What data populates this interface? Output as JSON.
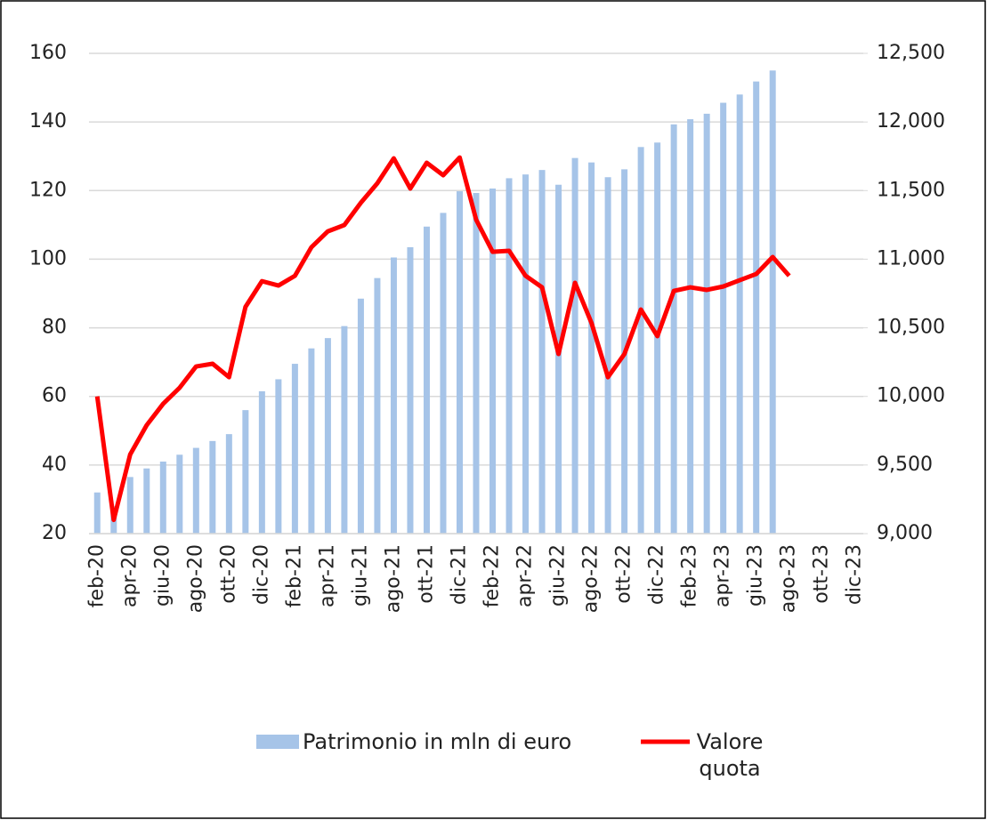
{
  "chart_data": {
    "type": "combo",
    "categories": [
      "feb-20",
      null,
      "apr-20",
      null,
      "giu-20",
      null,
      "ago-20",
      null,
      "ott-20",
      null,
      "dic-20",
      null,
      "feb-21",
      null,
      "apr-21",
      null,
      "giu-21",
      null,
      "ago-21",
      null,
      "ott-21",
      null,
      "dic-21",
      null,
      "feb-22",
      null,
      "apr-22",
      null,
      "giu-22",
      null,
      "ago-22",
      null,
      "ott-22",
      null,
      "dic-22",
      null,
      "feb-23",
      null,
      "apr-23",
      null,
      "giu-23",
      null,
      "ago-23",
      null,
      "ott-23",
      null,
      "dic-23"
    ],
    "series": [
      {
        "name": "Patrimonio in mln di euro",
        "color": "#a6c4e8",
        "mark": "bar",
        "values": [
          32,
          28,
          36.5,
          39,
          41,
          43,
          45,
          47,
          49,
          56,
          61.5,
          65,
          69.5,
          74,
          77,
          80.5,
          88.5,
          94.5,
          100.5,
          103.5,
          109.5,
          113.5,
          119.8,
          119.3,
          120.6,
          123.6,
          124.7,
          126,
          121.7,
          129.5,
          128.2,
          123.9,
          126.2,
          132.7,
          134,
          139.3,
          140.8,
          142.4,
          145.6,
          148,
          151.8,
          155,
          null,
          null,
          null,
          null,
          null
        ]
      },
      {
        "name": "Valore quota",
        "color": "#ff0000",
        "mark": "line",
        "axis": "y2",
        "values": [
          10000,
          9100,
          9577,
          9790,
          9946,
          10063,
          10218,
          10238,
          10140,
          10653,
          10840,
          10808,
          10879,
          11087,
          11203,
          11249,
          11411,
          11553,
          11735,
          11515,
          11703,
          11612,
          11741,
          11288,
          11054,
          11061,
          10879,
          10795,
          10309,
          10828,
          10536,
          10140,
          10309,
          10633,
          10439,
          10769,
          10795,
          10776,
          10801,
          10847,
          10892,
          11016,
          10879,
          null,
          null,
          null,
          null
        ]
      }
    ],
    "ylim": [
      20,
      160
    ],
    "yticks": [
      20,
      40,
      60,
      80,
      100,
      120,
      140,
      160
    ],
    "y2lim": [
      9000,
      12500
    ],
    "y2ticks": [
      {
        "value": 9000,
        "label": "9,000"
      },
      {
        "value": 9500,
        "label": "9,500"
      },
      {
        "value": 10000,
        "label": "10,000"
      },
      {
        "value": 10500,
        "label": "10,500"
      },
      {
        "value": 11000,
        "label": "11,000"
      },
      {
        "value": 11500,
        "label": "11,500"
      },
      {
        "value": 12000,
        "label": "12,000"
      },
      {
        "value": 12500,
        "label": "12,500"
      }
    ],
    "grid": true,
    "legend": "bottom"
  }
}
